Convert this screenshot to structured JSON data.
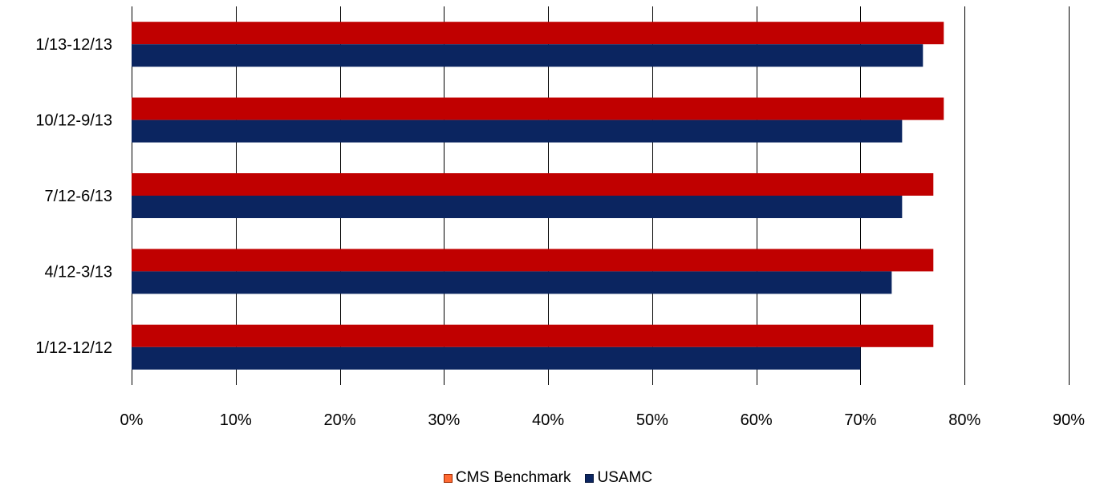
{
  "chart_data": {
    "type": "bar",
    "orientation": "horizontal",
    "categories": [
      "1/13-12/13",
      "10/12-9/13",
      "7/12-6/13",
      "4/12-3/13",
      "1/12-12/12"
    ],
    "series": [
      {
        "name": "CMS Benchmark",
        "values": [
          78,
          78,
          77,
          77,
          77
        ],
        "color": "#c00000"
      },
      {
        "name": "USAMC",
        "values": [
          76,
          74,
          74,
          73,
          70
        ],
        "color": "#0b2560"
      }
    ],
    "x_ticks": [
      "0%",
      "10%",
      "20%",
      "30%",
      "40%",
      "50%",
      "60%",
      "70%",
      "80%",
      "90%"
    ],
    "xlim": [
      0,
      90
    ],
    "grid": "vertical",
    "legend_position": "bottom",
    "legend_swatch_colors": {
      "CMS Benchmark": "#ff6a33",
      "USAMC": "#0b2560"
    }
  }
}
